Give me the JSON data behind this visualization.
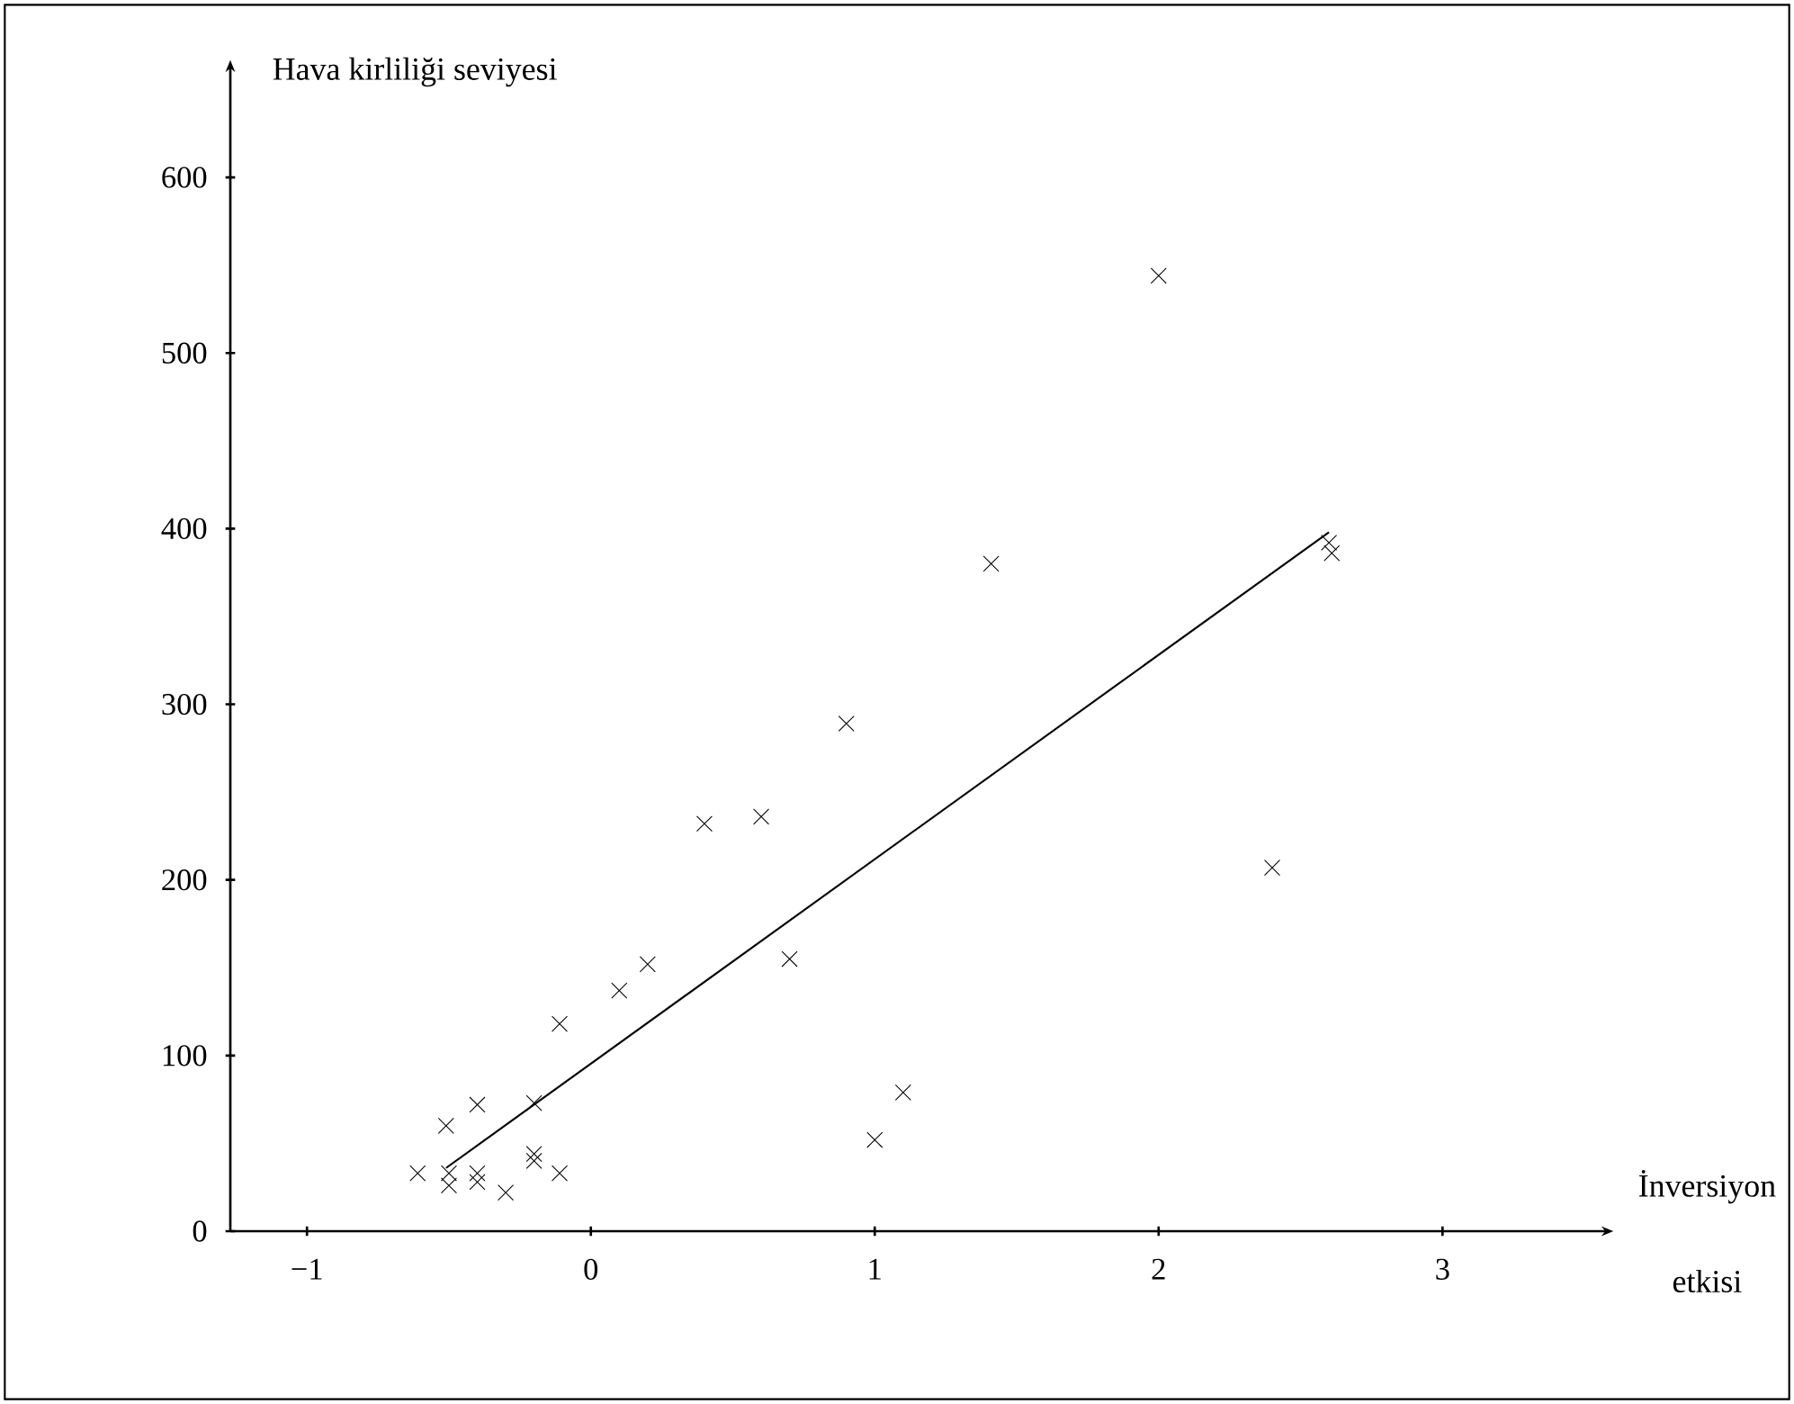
{
  "chart_data": {
    "type": "scatter",
    "xlabel": "İnversiyon etkisi",
    "ylabel": "Hava kirliliği seviyesi",
    "xlim": [
      -1.27,
      3.56
    ],
    "ylim": [
      0,
      660
    ],
    "xticks": [
      {
        "value": -1,
        "label": "−1"
      },
      0,
      1,
      2,
      3
    ],
    "yticks": [
      0,
      100,
      200,
      300,
      400,
      500,
      600
    ],
    "grid": false,
    "series": [
      {
        "color": "#000000",
        "marker": "cross",
        "x": [
          -0.61,
          -0.51,
          -0.5,
          -0.5,
          -0.4,
          -0.4,
          -0.4,
          -0.3,
          -0.2,
          -0.2,
          -0.2,
          -0.11,
          -0.11,
          0.1,
          0.2,
          0.4,
          0.6,
          0.7,
          0.9,
          1.0,
          1.1,
          1.41,
          2.0,
          2.4,
          2.6,
          2.61
        ],
        "values": [
          33,
          60,
          33,
          26,
          72,
          33,
          28,
          22,
          73,
          44,
          40,
          33,
          118,
          137,
          152,
          232,
          236,
          155,
          289,
          52,
          79,
          380,
          544,
          207,
          392,
          386
        ]
      },
      {
        "type": "line",
        "color": "#000000",
        "line_style": "solid",
        "x": [
          -0.51,
          2.6
        ],
        "values": [
          36,
          398
        ]
      }
    ]
  }
}
